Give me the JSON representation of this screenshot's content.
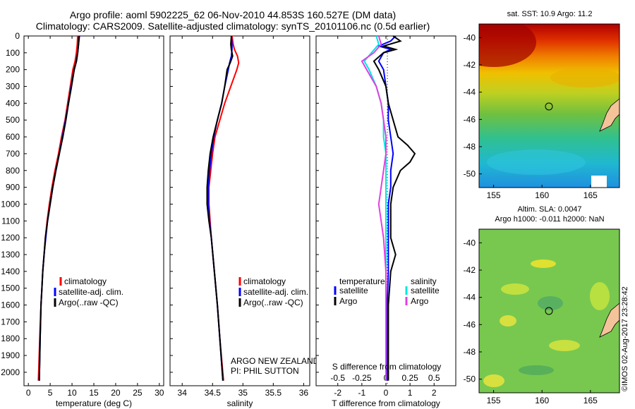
{
  "header": {
    "title_line1": "Argo profile: aoml 5902225_62 06-Nov-2010 44.853S 160.527E (DM data)",
    "title_line2": "Climatology: CARS2009. Satellite-adjusted climatology: synTS_20101106.nc (0.5d earlier)"
  },
  "colors": {
    "climatology": "#ff0000",
    "satellite": "#0000ff",
    "argo": "#000000",
    "salinity_satellite": "#00e5e5",
    "salinity_argo": "#e040e0"
  },
  "chart_data": [
    {
      "type": "line",
      "xlabel": "temperature (deg C)",
      "ylabel": "",
      "xlim": [
        -1,
        31
      ],
      "ylim": [
        2080,
        0
      ],
      "xticks": [
        0,
        5,
        10,
        15,
        20,
        25,
        30
      ],
      "yticks": [
        0,
        100,
        200,
        300,
        400,
        500,
        600,
        700,
        800,
        900,
        1000,
        1100,
        1200,
        1300,
        1400,
        1500,
        1600,
        1700,
        1800,
        1900,
        2000
      ],
      "legend": [
        "climatology",
        "satellite-adj. clim.",
        "Argo(..raw -QC)"
      ],
      "series": [
        {
          "name": "climatology",
          "color": "#ff0000",
          "y": [
            0,
            50,
            100,
            150,
            200,
            300,
            400,
            500,
            600,
            700,
            800,
            900,
            1000,
            1100,
            1200,
            1300,
            1400,
            1500,
            1600,
            1800,
            2050
          ],
          "x": [
            11.3,
            11.2,
            11.0,
            10.7,
            10.2,
            9.6,
            9.0,
            8.4,
            7.6,
            6.9,
            6.1,
            5.4,
            4.8,
            4.3,
            3.9,
            3.6,
            3.3,
            3.1,
            2.9,
            2.6,
            2.3
          ]
        },
        {
          "name": "satellite-adj. clim.",
          "color": "#0000ff",
          "y": [
            0,
            50,
            100,
            150,
            200,
            300,
            400,
            500,
            600,
            700,
            800,
            900,
            1000,
            1100,
            1200,
            1300,
            1400,
            1500,
            1600,
            1800,
            2050
          ],
          "x": [
            11.7,
            11.5,
            11.3,
            11.0,
            10.5,
            9.8,
            9.2,
            8.5,
            7.8,
            7.1,
            6.3,
            5.6,
            5.0,
            4.4,
            4.0,
            3.6,
            3.3,
            3.1,
            2.9,
            2.7,
            2.5
          ]
        },
        {
          "name": "Argo(..raw -QC)",
          "color": "#000000",
          "y": [
            0,
            50,
            100,
            150,
            200,
            300,
            400,
            500,
            600,
            700,
            800,
            900,
            1000,
            1100,
            1200,
            1300,
            1400,
            1500,
            1600,
            1800,
            2050
          ],
          "x": [
            11.6,
            11.5,
            11.3,
            11.0,
            10.5,
            9.9,
            9.2,
            8.6,
            7.9,
            7.1,
            6.3,
            5.6,
            5.0,
            4.4,
            3.9,
            3.6,
            3.3,
            3.1,
            2.9,
            2.7,
            2.5
          ]
        }
      ]
    },
    {
      "type": "line",
      "xlabel": "salinity",
      "ylabel": "",
      "xlim": [
        33.8,
        36.1
      ],
      "ylim": [
        2080,
        0
      ],
      "xticks": [
        34,
        34.5,
        35,
        35.5,
        36
      ],
      "legend": [
        "climatology",
        "satellite-adj. clim.",
        "Argo(..raw -QC)"
      ],
      "annotation": [
        "ARGO NEW ZEALAND",
        "PI: PHIL SUTTON"
      ],
      "series": [
        {
          "name": "climatology",
          "color": "#ff0000",
          "y": [
            0,
            50,
            80,
            120,
            160,
            200,
            300,
            400,
            500,
            600,
            700,
            800,
            900,
            1000,
            1100,
            1200,
            1400,
            1600,
            1800,
            2050
          ],
          "x": [
            34.82,
            34.84,
            34.86,
            34.91,
            34.93,
            34.9,
            34.8,
            34.7,
            34.62,
            34.54,
            34.5,
            34.47,
            34.44,
            34.44,
            34.46,
            34.48,
            34.53,
            34.58,
            34.62,
            34.68
          ]
        },
        {
          "name": "satellite-adj. clim.",
          "color": "#0000ff",
          "y": [
            0,
            50,
            80,
            120,
            160,
            200,
            300,
            400,
            500,
            600,
            700,
            800,
            900,
            1000,
            1100,
            1200,
            1400,
            1600,
            1800,
            2050
          ],
          "x": [
            34.81,
            34.82,
            34.82,
            34.81,
            34.78,
            34.76,
            34.7,
            34.65,
            34.58,
            34.52,
            34.48,
            34.45,
            34.43,
            34.43,
            34.45,
            34.48,
            34.53,
            34.58,
            34.62,
            34.67
          ]
        },
        {
          "name": "Argo(..raw -QC)",
          "color": "#000000",
          "y": [
            0,
            50,
            80,
            120,
            160,
            200,
            300,
            400,
            500,
            600,
            700,
            800,
            900,
            1000,
            1100,
            1200,
            1400,
            1600,
            1800,
            2050
          ],
          "x": [
            34.81,
            34.8,
            34.81,
            34.83,
            34.79,
            34.74,
            34.7,
            34.65,
            34.58,
            34.51,
            34.46,
            34.43,
            34.41,
            34.41,
            34.44,
            34.48,
            34.53,
            34.58,
            34.62,
            34.67
          ]
        }
      ]
    },
    {
      "type": "line",
      "xlabel": "T difference from climatology",
      "ylabel": "",
      "xlim": [
        -2.9,
        2.9
      ],
      "ylim": [
        2080,
        0
      ],
      "xticks": [
        -2,
        -1,
        0,
        1,
        2
      ],
      "s_axis_label": "S difference from climatology",
      "s_ticks": [
        "-0.5",
        "-0.25",
        "0",
        "0.25",
        "0.5"
      ],
      "legend_temperature_title": "temperature",
      "legend_salinity_title": "salinity",
      "legend": [
        "satellite",
        "Argo",
        "satellite",
        "Argo"
      ],
      "series": [
        {
          "name": "satellite",
          "group": "temperature",
          "color": "#0000ff",
          "y": [
            0,
            30,
            60,
            80,
            100,
            150,
            200,
            300,
            400,
            500,
            600,
            700,
            800,
            900,
            1000,
            1200,
            1400,
            1600,
            1800,
            2050
          ],
          "x": [
            0.4,
            0.2,
            -0.3,
            0.2,
            -0.1,
            -0.3,
            -0.1,
            0.0,
            0.1,
            0.1,
            0.2,
            0.3,
            0.2,
            0.2,
            0.1,
            0.1,
            0.1,
            0.05,
            0.05,
            0.05
          ]
        },
        {
          "name": "Argo",
          "group": "temperature",
          "color": "#000000",
          "y": [
            0,
            30,
            60,
            80,
            100,
            150,
            200,
            300,
            400,
            500,
            600,
            650,
            700,
            750,
            800,
            900,
            1000,
            1200,
            1300,
            1400,
            1600,
            1800,
            2050
          ],
          "x": [
            0.3,
            0.6,
            -0.1,
            0.4,
            -0.1,
            -0.5,
            -0.3,
            0.0,
            0.1,
            0.3,
            0.5,
            0.9,
            1.2,
            1.0,
            0.6,
            0.3,
            0.2,
            0.2,
            0.4,
            0.2,
            0.1,
            0.1,
            0.1
          ]
        },
        {
          "name": "satellite",
          "group": "salinity",
          "color": "#00e5e5",
          "y": [
            0,
            50,
            100,
            150,
            200,
            300,
            400,
            500,
            600,
            700,
            800,
            900,
            1000,
            1200,
            1400,
            1600,
            1800,
            2050
          ],
          "x": [
            -0.4,
            -0.3,
            -0.6,
            -0.9,
            -0.7,
            -0.4,
            -0.2,
            -0.1,
            -0.1,
            0.0,
            0.0,
            0.0,
            0.0,
            0.0,
            0.0,
            0.0,
            0.0,
            0.0
          ]
        },
        {
          "name": "Argo",
          "group": "salinity",
          "color": "#e040e0",
          "y": [
            0,
            50,
            100,
            150,
            200,
            300,
            400,
            500,
            600,
            700,
            800,
            900,
            1000,
            1200,
            1400,
            1600,
            1800,
            2050
          ],
          "x": [
            -0.3,
            -0.2,
            -0.5,
            -1.0,
            -0.8,
            -0.4,
            -0.2,
            -0.1,
            0.0,
            0.0,
            -0.1,
            -0.2,
            -0.3,
            -0.1,
            0.0,
            0.0,
            0.0,
            0.0
          ]
        }
      ]
    },
    {
      "type": "heatmap",
      "title": "sat. SST: 10.9 Argo: 11.2",
      "xlim": [
        153.5,
        168
      ],
      "ylim": [
        -51,
        -39
      ],
      "xticks": [
        155,
        160,
        165
      ],
      "yticks": [
        -40,
        -42,
        -44,
        -46,
        -48,
        -50
      ],
      "marker": {
        "lon": 160.527,
        "lat": -44.853
      }
    },
    {
      "type": "heatmap",
      "title_line1": "Altim. SLA: 0.0047",
      "title_line2": "Argo h1000: -0.011 h2000: NaN",
      "xlim": [
        153.5,
        168
      ],
      "ylim": [
        -51,
        -39
      ],
      "xticks": [
        155,
        160,
        165
      ],
      "yticks": [
        -40,
        -42,
        -44,
        -46,
        -48,
        -50
      ],
      "marker": {
        "lon": 160.527,
        "lat": -44.853
      }
    }
  ],
  "stamp": "©IMOS 02-Aug-2017 23:28:42"
}
